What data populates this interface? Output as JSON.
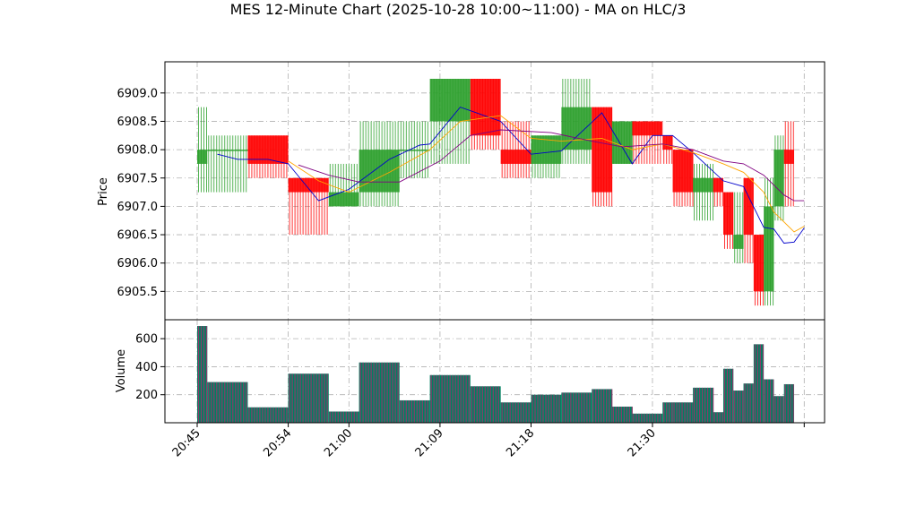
{
  "chart_data": {
    "title": "MES 12-Minute Chart (2025-10-28 10:00~11:00) - MA on HLC/3",
    "type": "candlestick",
    "price_axis": {
      "label": "Price",
      "ylim": [
        6905.0,
        6909.55
      ],
      "ticks": [
        6905.5,
        6906.0,
        6906.5,
        6907.0,
        6907.5,
        6908.0,
        6908.5,
        6909.0
      ],
      "tick_labels": [
        "6905.5",
        "6906.0",
        "6906.5",
        "6907.0",
        "6907.5",
        "6908.0",
        "6908.5",
        "6909.0"
      ]
    },
    "volume_axis": {
      "label": "Volume",
      "ylim": [
        0,
        735
      ],
      "ticks": [
        200,
        400,
        600
      ],
      "tick_labels": [
        "200",
        "400",
        "600"
      ]
    },
    "x_axis": {
      "type": "time",
      "range": [
        "20:45",
        "21:44"
      ],
      "ticks": [
        "20:45",
        "20:54",
        "21:00",
        "21:09",
        "21:18",
        "21:30",
        ""
      ],
      "tick_times": [
        "20:45",
        "20:54",
        "21:00",
        "21:09",
        "21:18",
        "21:30",
        "21:45"
      ]
    },
    "grid": true,
    "colors": {
      "up": "#2ca02c",
      "down": "#ff0000",
      "ma_fast": "#0000cc",
      "ma_mid": "#ffa500",
      "ma_slow": "#800080",
      "vol_up": "#008060",
      "vol_down": "#8b3a6b"
    },
    "candles": [
      {
        "start": "20:45",
        "end": "20:46",
        "open": 6907.75,
        "high": 6908.75,
        "low": 6907.25,
        "close": 6908.0,
        "volume": 690
      },
      {
        "start": "20:46",
        "end": "20:50",
        "open": 6908.0,
        "high": 6908.25,
        "low": 6907.25,
        "close": 6908.0,
        "volume": 290
      },
      {
        "start": "20:50",
        "end": "20:54",
        "open": 6908.25,
        "high": 6908.25,
        "low": 6907.5,
        "close": 6907.75,
        "volume": 110
      },
      {
        "start": "20:54",
        "end": "20:58",
        "open": 6907.5,
        "high": 6907.5,
        "low": 6906.5,
        "close": 6907.25,
        "volume": 350
      },
      {
        "start": "20:58",
        "end": "21:01",
        "open": 6907.0,
        "high": 6907.75,
        "low": 6907.0,
        "close": 6907.25,
        "volume": 80
      },
      {
        "start": "21:01",
        "end": "21:05",
        "open": 6907.25,
        "high": 6908.5,
        "low": 6907.0,
        "close": 6908.0,
        "volume": 430
      },
      {
        "start": "21:05",
        "end": "21:08",
        "open": 6908.0,
        "high": 6908.5,
        "low": 6907.5,
        "close": 6908.0,
        "volume": 160
      },
      {
        "start": "21:08",
        "end": "21:12",
        "open": 6908.5,
        "high": 6909.25,
        "low": 6907.75,
        "close": 6909.25,
        "volume": 340
      },
      {
        "start": "21:12",
        "end": "21:15",
        "open": 6909.25,
        "high": 6909.25,
        "low": 6908.0,
        "close": 6908.25,
        "volume": 260
      },
      {
        "start": "21:15",
        "end": "21:18",
        "open": 6908.0,
        "high": 6908.5,
        "low": 6907.5,
        "close": 6907.75,
        "volume": 145
      },
      {
        "start": "21:18",
        "end": "21:21",
        "open": 6907.75,
        "high": 6908.25,
        "low": 6907.5,
        "close": 6908.25,
        "volume": 200
      },
      {
        "start": "21:21",
        "end": "21:24",
        "open": 6908.0,
        "high": 6909.25,
        "low": 6907.75,
        "close": 6908.75,
        "volume": 215
      },
      {
        "start": "21:24",
        "end": "21:26",
        "open": 6908.75,
        "high": 6908.75,
        "low": 6907.0,
        "close": 6907.25,
        "volume": 240
      },
      {
        "start": "21:26",
        "end": "21:28",
        "open": 6907.75,
        "high": 6908.5,
        "low": 6907.75,
        "close": 6908.5,
        "volume": 115
      },
      {
        "start": "21:28",
        "end": "21:31",
        "open": 6908.5,
        "high": 6908.5,
        "low": 6907.75,
        "close": 6908.25,
        "volume": 65
      },
      {
        "start": "21:31",
        "end": "21:32",
        "open": 6908.25,
        "high": 6908.25,
        "low": 6907.75,
        "close": 6908.0,
        "volume": 145
      },
      {
        "start": "21:32",
        "end": "21:34",
        "open": 6908.0,
        "high": 6908.0,
        "low": 6907.0,
        "close": 6907.25,
        "volume": 145
      },
      {
        "start": "21:34",
        "end": "21:36",
        "open": 6907.25,
        "high": 6907.75,
        "low": 6906.75,
        "close": 6907.5,
        "volume": 250
      },
      {
        "start": "21:36",
        "end": "21:37",
        "open": 6907.5,
        "high": 6907.5,
        "low": 6907.0,
        "close": 6907.25,
        "volume": 75
      },
      {
        "start": "21:37",
        "end": "21:38",
        "open": 6907.25,
        "high": 6907.25,
        "low": 6906.25,
        "close": 6906.5,
        "volume": 385
      },
      {
        "start": "21:38",
        "end": "21:39",
        "open": 6906.25,
        "high": 6907.25,
        "low": 6906.0,
        "close": 6906.5,
        "volume": 230
      },
      {
        "start": "21:39",
        "end": "21:40",
        "open": 6907.5,
        "high": 6907.5,
        "low": 6906.0,
        "close": 6906.5,
        "volume": 280
      },
      {
        "start": "21:40",
        "end": "21:41",
        "open": 6906.5,
        "high": 6906.5,
        "low": 6905.25,
        "close": 6905.5,
        "volume": 560
      },
      {
        "start": "21:41",
        "end": "21:42",
        "open": 6905.5,
        "high": 6907.5,
        "low": 6905.25,
        "close": 6907.0,
        "volume": 310
      },
      {
        "start": "21:42",
        "end": "21:43",
        "open": 6907.0,
        "high": 6908.25,
        "low": 6906.75,
        "close": 6908.0,
        "volume": 190
      },
      {
        "start": "21:43",
        "end": "21:44",
        "open": 6908.0,
        "high": 6908.5,
        "low": 6907.0,
        "close": 6907.75,
        "volume": 275
      }
    ],
    "series": [
      {
        "color": "#0000cc",
        "points": [
          [
            "20:47",
            6907.92
          ],
          [
            "20:49",
            6907.83
          ],
          [
            "20:52",
            6907.83
          ],
          [
            "20:54",
            6907.75
          ],
          [
            "20:57",
            6907.1
          ],
          [
            "21:00",
            6907.3
          ],
          [
            "21:04",
            6907.83
          ],
          [
            "21:07",
            6908.08
          ],
          [
            "21:08",
            6908.1
          ],
          [
            "21:11",
            6908.75
          ],
          [
            "21:15",
            6908.5
          ],
          [
            "21:18",
            6907.92
          ],
          [
            "21:21",
            6907.98
          ],
          [
            "21:25",
            6908.65
          ],
          [
            "21:28",
            6907.75
          ],
          [
            "21:30",
            6908.25
          ],
          [
            "21:32",
            6908.25
          ],
          [
            "21:34",
            6907.95
          ],
          [
            "21:37",
            6907.45
          ],
          [
            "21:39",
            6907.35
          ],
          [
            "21:41",
            6906.63
          ],
          [
            "21:42",
            6906.6
          ],
          [
            "21:43",
            6906.35
          ],
          [
            "21:44",
            6906.37
          ],
          [
            "21:45",
            6906.62
          ]
        ]
      },
      {
        "color": "#ffa500",
        "points": [
          [
            "20:54",
            6907.8
          ],
          [
            "20:57",
            6907.45
          ],
          [
            "21:00",
            6907.25
          ],
          [
            "21:04",
            6907.6
          ],
          [
            "21:08",
            6908.0
          ],
          [
            "21:11",
            6908.5
          ],
          [
            "21:15",
            6908.6
          ],
          [
            "21:18",
            6908.2
          ],
          [
            "21:21",
            6908.15
          ],
          [
            "21:25",
            6908.2
          ],
          [
            "21:28",
            6908.0
          ],
          [
            "21:31",
            6908.1
          ],
          [
            "21:34",
            6907.95
          ],
          [
            "21:37",
            6907.75
          ],
          [
            "21:39",
            6907.6
          ],
          [
            "21:41",
            6907.25
          ],
          [
            "21:42",
            6906.9
          ],
          [
            "21:44",
            6906.55
          ],
          [
            "21:45",
            6906.65
          ]
        ]
      },
      {
        "color": "#800080",
        "points": [
          [
            "20:55",
            6907.73
          ],
          [
            "20:58",
            6907.55
          ],
          [
            "21:01",
            6907.43
          ],
          [
            "21:05",
            6907.43
          ],
          [
            "21:09",
            6907.8
          ],
          [
            "21:12",
            6908.25
          ],
          [
            "21:15",
            6908.35
          ],
          [
            "21:20",
            6908.3
          ],
          [
            "21:24",
            6908.15
          ],
          [
            "21:27",
            6908.05
          ],
          [
            "21:31",
            6908.1
          ],
          [
            "21:34",
            6908.0
          ],
          [
            "21:37",
            6907.8
          ],
          [
            "21:39",
            6907.75
          ],
          [
            "21:41",
            6907.55
          ],
          [
            "21:43",
            6907.2
          ],
          [
            "21:44",
            6907.1
          ],
          [
            "21:45",
            6907.1
          ]
        ]
      }
    ]
  }
}
